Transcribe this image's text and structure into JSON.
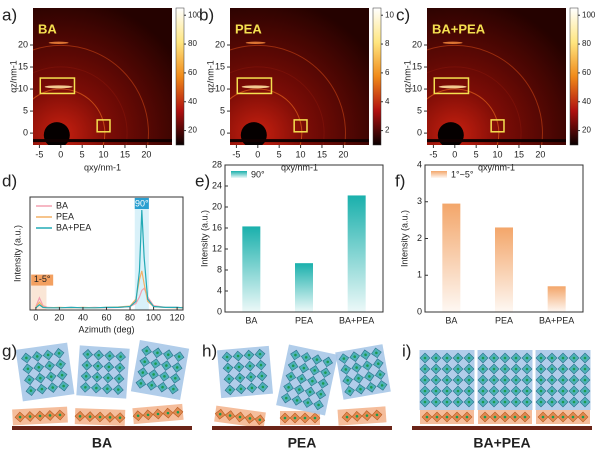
{
  "chart_data": [
    {
      "type": "heatmap",
      "panel": "a)",
      "title": "BA",
      "xlabel": "qxy/nm-1",
      "ylabel": "qz/nm-1",
      "xlim": [
        -6.5,
        26
      ],
      "ylim": [
        -2.7,
        28.4
      ],
      "xticks": [
        -5,
        0,
        5,
        10,
        15,
        20
      ],
      "yticks": [
        0,
        5,
        10,
        15,
        20
      ],
      "clim": [
        10,
        105
      ],
      "cticks": [
        20,
        40,
        60,
        80,
        100
      ]
    },
    {
      "type": "heatmap",
      "panel": "b)",
      "title": "PEA",
      "xlabel": "qxy/nm-1",
      "ylabel": "qz/nm-1",
      "xlim": [
        -6.5,
        26
      ],
      "ylim": [
        -2.7,
        28.4
      ],
      "xticks": [
        -5,
        0,
        5,
        10,
        15,
        20
      ],
      "yticks": [
        0,
        5,
        10,
        15,
        20
      ],
      "clim": [
        1,
        10.5
      ],
      "cticks": [
        2,
        4,
        6,
        8,
        10
      ]
    },
    {
      "type": "heatmap",
      "panel": "c)",
      "title": "BA+PEA",
      "xlabel": "qxy/nm-1",
      "ylabel": "qz/nm-1",
      "xlim": [
        -6.5,
        26
      ],
      "ylim": [
        -2.7,
        28.4
      ],
      "xticks": [
        -5,
        0,
        5,
        10,
        15,
        20
      ],
      "yticks": [
        0,
        5,
        10,
        15,
        20
      ],
      "clim": [
        10,
        105
      ],
      "cticks": [
        20,
        40,
        60,
        80,
        100
      ]
    },
    {
      "type": "line",
      "panel": "d)",
      "xlabel": "Azimuth (deg)",
      "ylabel": "Intensity (a.u.)",
      "annotations": [
        "1-5°",
        "90°"
      ],
      "x": [
        0,
        3,
        6,
        10,
        20,
        30,
        40,
        50,
        60,
        70,
        80,
        85,
        88,
        90,
        92,
        95,
        100,
        110,
        120,
        125
      ],
      "series": [
        {
          "name": "BA",
          "color": "#f2a0b0",
          "values": [
            0.8,
            2.8,
            1.0,
            0.6,
            0.5,
            0.6,
            0.5,
            0.6,
            0.5,
            0.6,
            0.8,
            1.5,
            3,
            4.5,
            5,
            3,
            1,
            0.6,
            0.6,
            0.5
          ]
        },
        {
          "name": "PEA",
          "color": "#f3b066",
          "values": [
            0.6,
            1.8,
            0.7,
            0.5,
            0.6,
            0.5,
            0.6,
            0.5,
            0.6,
            0.7,
            0.9,
            2.5,
            7,
            9,
            6,
            2,
            0.8,
            0.6,
            0.5,
            0.6
          ]
        },
        {
          "name": "BA+PEA",
          "color": "#23aab5",
          "values": [
            0.5,
            1.2,
            0.6,
            0.5,
            0.5,
            0.6,
            0.5,
            0.5,
            0.6,
            0.6,
            0.8,
            2,
            9,
            23,
            12,
            2.5,
            0.8,
            0.6,
            0.6,
            0.5
          ]
        }
      ],
      "xlim": [
        -5,
        125
      ],
      "ylim": [
        0,
        26
      ],
      "xticks": [
        0,
        20,
        40,
        60,
        80,
        100,
        120
      ]
    },
    {
      "type": "bar",
      "panel": "e)",
      "ylabel": "Intensity (a.u.)",
      "categories": [
        "BA",
        "PEA",
        "BA+PEA"
      ],
      "series": [
        {
          "name": "90°",
          "color": "#1ab0ac",
          "values": [
            16.3,
            9.3,
            22.2
          ]
        }
      ],
      "ylim": [
        0,
        28
      ],
      "yticks": [
        0,
        4,
        8,
        12,
        16,
        20,
        24,
        28
      ]
    },
    {
      "type": "bar",
      "panel": "f)",
      "ylabel": "Intensity (a.u.)",
      "categories": [
        "BA",
        "PEA",
        "BA+PEA"
      ],
      "series": [
        {
          "name": "1°~5°",
          "color": "#f3a66a",
          "values": [
            2.95,
            2.3,
            0.7
          ]
        }
      ],
      "ylim": [
        0,
        4
      ],
      "yticks": [
        0,
        1,
        2,
        3,
        4
      ]
    }
  ],
  "schematics": [
    {
      "panel": "g)",
      "label": "BA"
    },
    {
      "panel": "h)",
      "label": "PEA"
    },
    {
      "panel": "i)",
      "label": "BA+PEA"
    }
  ]
}
